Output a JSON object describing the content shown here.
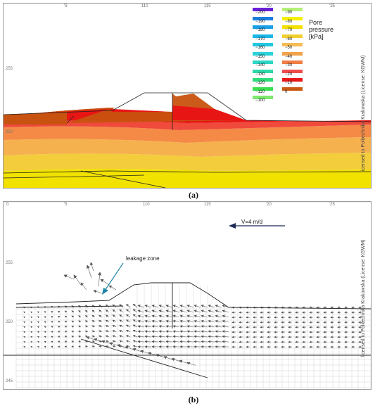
{
  "panel_a": {
    "caption": "(a)",
    "license": "licensed to Politechnika Krakowska (License: KGWM)",
    "top_ticks": [
      "'5",
      "110",
      "115",
      "'20",
      "'25"
    ],
    "left_ticks": [
      "255",
      "250"
    ],
    "legend": {
      "title_lines": [
        "Pore",
        "pressure",
        "[kPa]"
      ],
      "left_column": [
        {
          "value": "−200",
          "color": "#6a1fd6"
        },
        {
          "value": "−190",
          "color": "#1b7de0"
        },
        {
          "value": "−180",
          "color": "#1aa0e6"
        },
        {
          "value": "−170",
          "color": "#1ab6e6"
        },
        {
          "value": "−160",
          "color": "#22c7e0"
        },
        {
          "value": "−150",
          "color": "#2ad2d8"
        },
        {
          "value": "−140",
          "color": "#2dd6c4"
        },
        {
          "value": "−130",
          "color": "#2ed8a8"
        },
        {
          "value": "−120",
          "color": "#2fdc7a"
        },
        {
          "value": "−110",
          "color": "#39df4e"
        },
        {
          "value": "−100",
          "color": "#7ee86e"
        }
      ],
      "right_column": [
        {
          "value": "−90",
          "color": "#b5f07a"
        },
        {
          "value": "−80",
          "color": "#f5f000"
        },
        {
          "value": "−70",
          "color": "#f2e000"
        },
        {
          "value": "−60",
          "color": "#f0cf30"
        },
        {
          "value": "−50",
          "color": "#f5bb55"
        },
        {
          "value": "−40",
          "color": "#f2a34a"
        },
        {
          "value": "−30",
          "color": "#f07d44"
        },
        {
          "value": "−20",
          "color": "#ee4b4b"
        },
        {
          "value": "−10",
          "color": "#e81818"
        },
        {
          "value": "0",
          "color": "#c85a12"
        }
      ]
    }
  },
  "panel_b": {
    "caption": "(b)",
    "license": "licensed to Politechnika Krakowska (License: KGWM)",
    "top_ticks": [
      "'0",
      "'5",
      "110",
      "115",
      "'20",
      "'25"
    ],
    "left_ticks": [
      "255",
      "250",
      "245"
    ],
    "velocity_label": "V=4 m/d",
    "leakage_label": "leakage zone"
  },
  "colors": {
    "layer_dark": "#c8520f",
    "layer_red": "#e81515",
    "layer_redorange": "#ef4a3c",
    "layer_orange": "#f48a46",
    "layer_lightorange": "#f6b14f",
    "layer_ochre": "#f3cd3c",
    "layer_yellow": "#f2e200",
    "mesh": "#c8c8c8",
    "outline": "#222222",
    "arrow_teal": "#1f86a6",
    "arrow_navy": "#1c2a55"
  }
}
